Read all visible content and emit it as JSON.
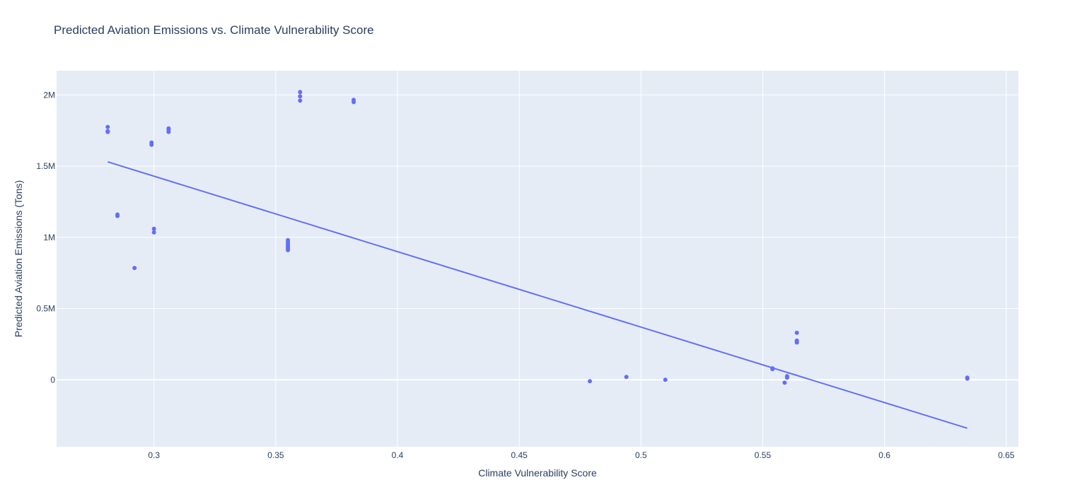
{
  "chart_data": {
    "type": "scatter",
    "title": "Predicted Aviation Emissions vs. Climate Vulnerability Score",
    "xlabel": "Climate Vulnerability Score",
    "ylabel": "Predicted Aviation Emissions (Tons)",
    "xlim": [
      0.26,
      0.655
    ],
    "ylim": [
      -470000,
      2170000
    ],
    "x_ticks": [
      0.3,
      0.35,
      0.4,
      0.45,
      0.5,
      0.55,
      0.6,
      0.65
    ],
    "x_tick_labels": [
      "0.3",
      "0.35",
      "0.4",
      "0.45",
      "0.5",
      "0.55",
      "0.6",
      "0.65"
    ],
    "y_ticks": [
      0,
      500000,
      1000000,
      1500000,
      2000000
    ],
    "y_tick_labels": [
      "0",
      "0.5M",
      "1M",
      "1.5M",
      "2M"
    ],
    "grid": true,
    "colors": {
      "marker": "#636efa",
      "plot_bg": "#e5ecf6",
      "grid": "#ffffff",
      "text": "#2a3f5f"
    },
    "series": [
      {
        "mode": "markers",
        "x": [
          0.281,
          0.281,
          0.281,
          0.285,
          0.285,
          0.292,
          0.299,
          0.299,
          0.3,
          0.3,
          0.306,
          0.306,
          0.306,
          0.355,
          0.355,
          0.355,
          0.355,
          0.355,
          0.355,
          0.355,
          0.36,
          0.36,
          0.36,
          0.382,
          0.382,
          0.479,
          0.494,
          0.51,
          0.554,
          0.554,
          0.559,
          0.56,
          0.56,
          0.564,
          0.564,
          0.564,
          0.634,
          0.634
        ],
        "y": [
          1775000,
          1745000,
          1740000,
          1160000,
          1150000,
          785000,
          1665000,
          1650000,
          1060000,
          1035000,
          1765000,
          1755000,
          1740000,
          980000,
          965000,
          950000,
          940000,
          930000,
          920000,
          910000,
          2020000,
          1990000,
          1960000,
          1965000,
          1950000,
          -10000,
          20000,
          0,
          80000,
          75000,
          -20000,
          25000,
          15000,
          330000,
          275000,
          262000,
          15000,
          8000
        ]
      },
      {
        "mode": "lines",
        "x": [
          0.281,
          0.634
        ],
        "y": [
          1530000,
          -340000
        ]
      }
    ]
  }
}
